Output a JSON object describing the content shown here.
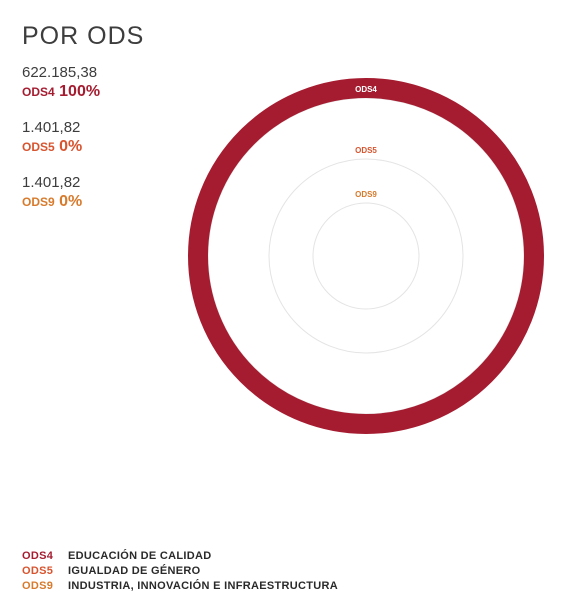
{
  "title": "POR ODS",
  "colors": {
    "ODS4": "#a51c30",
    "ODS5": "#d8542f",
    "ODS9": "#d77a2c",
    "track": "#e4e4e4"
  },
  "stats": [
    {
      "amount": "622.185,38",
      "code": "ODS4",
      "percent": "100%"
    },
    {
      "amount": "1.401,82",
      "code": "ODS5",
      "percent": "0%"
    },
    {
      "amount": "1.401,82",
      "code": "ODS9",
      "percent": "0%"
    }
  ],
  "chart_data": {
    "type": "radial-bar",
    "categories": [
      "ODS4",
      "ODS5",
      "ODS9"
    ],
    "values": [
      622185.38,
      1401.82,
      1401.82
    ],
    "percent": [
      100,
      0,
      0
    ]
  },
  "legend": [
    {
      "code": "ODS4",
      "label": "EDUCACIÓN DE CALIDAD"
    },
    {
      "code": "ODS5",
      "label": "IGUALDAD DE GÉNERO"
    },
    {
      "code": "ODS9",
      "label": "INDUSTRIA, INNOVACIÓN E INFRAESTRUCTURA"
    }
  ]
}
